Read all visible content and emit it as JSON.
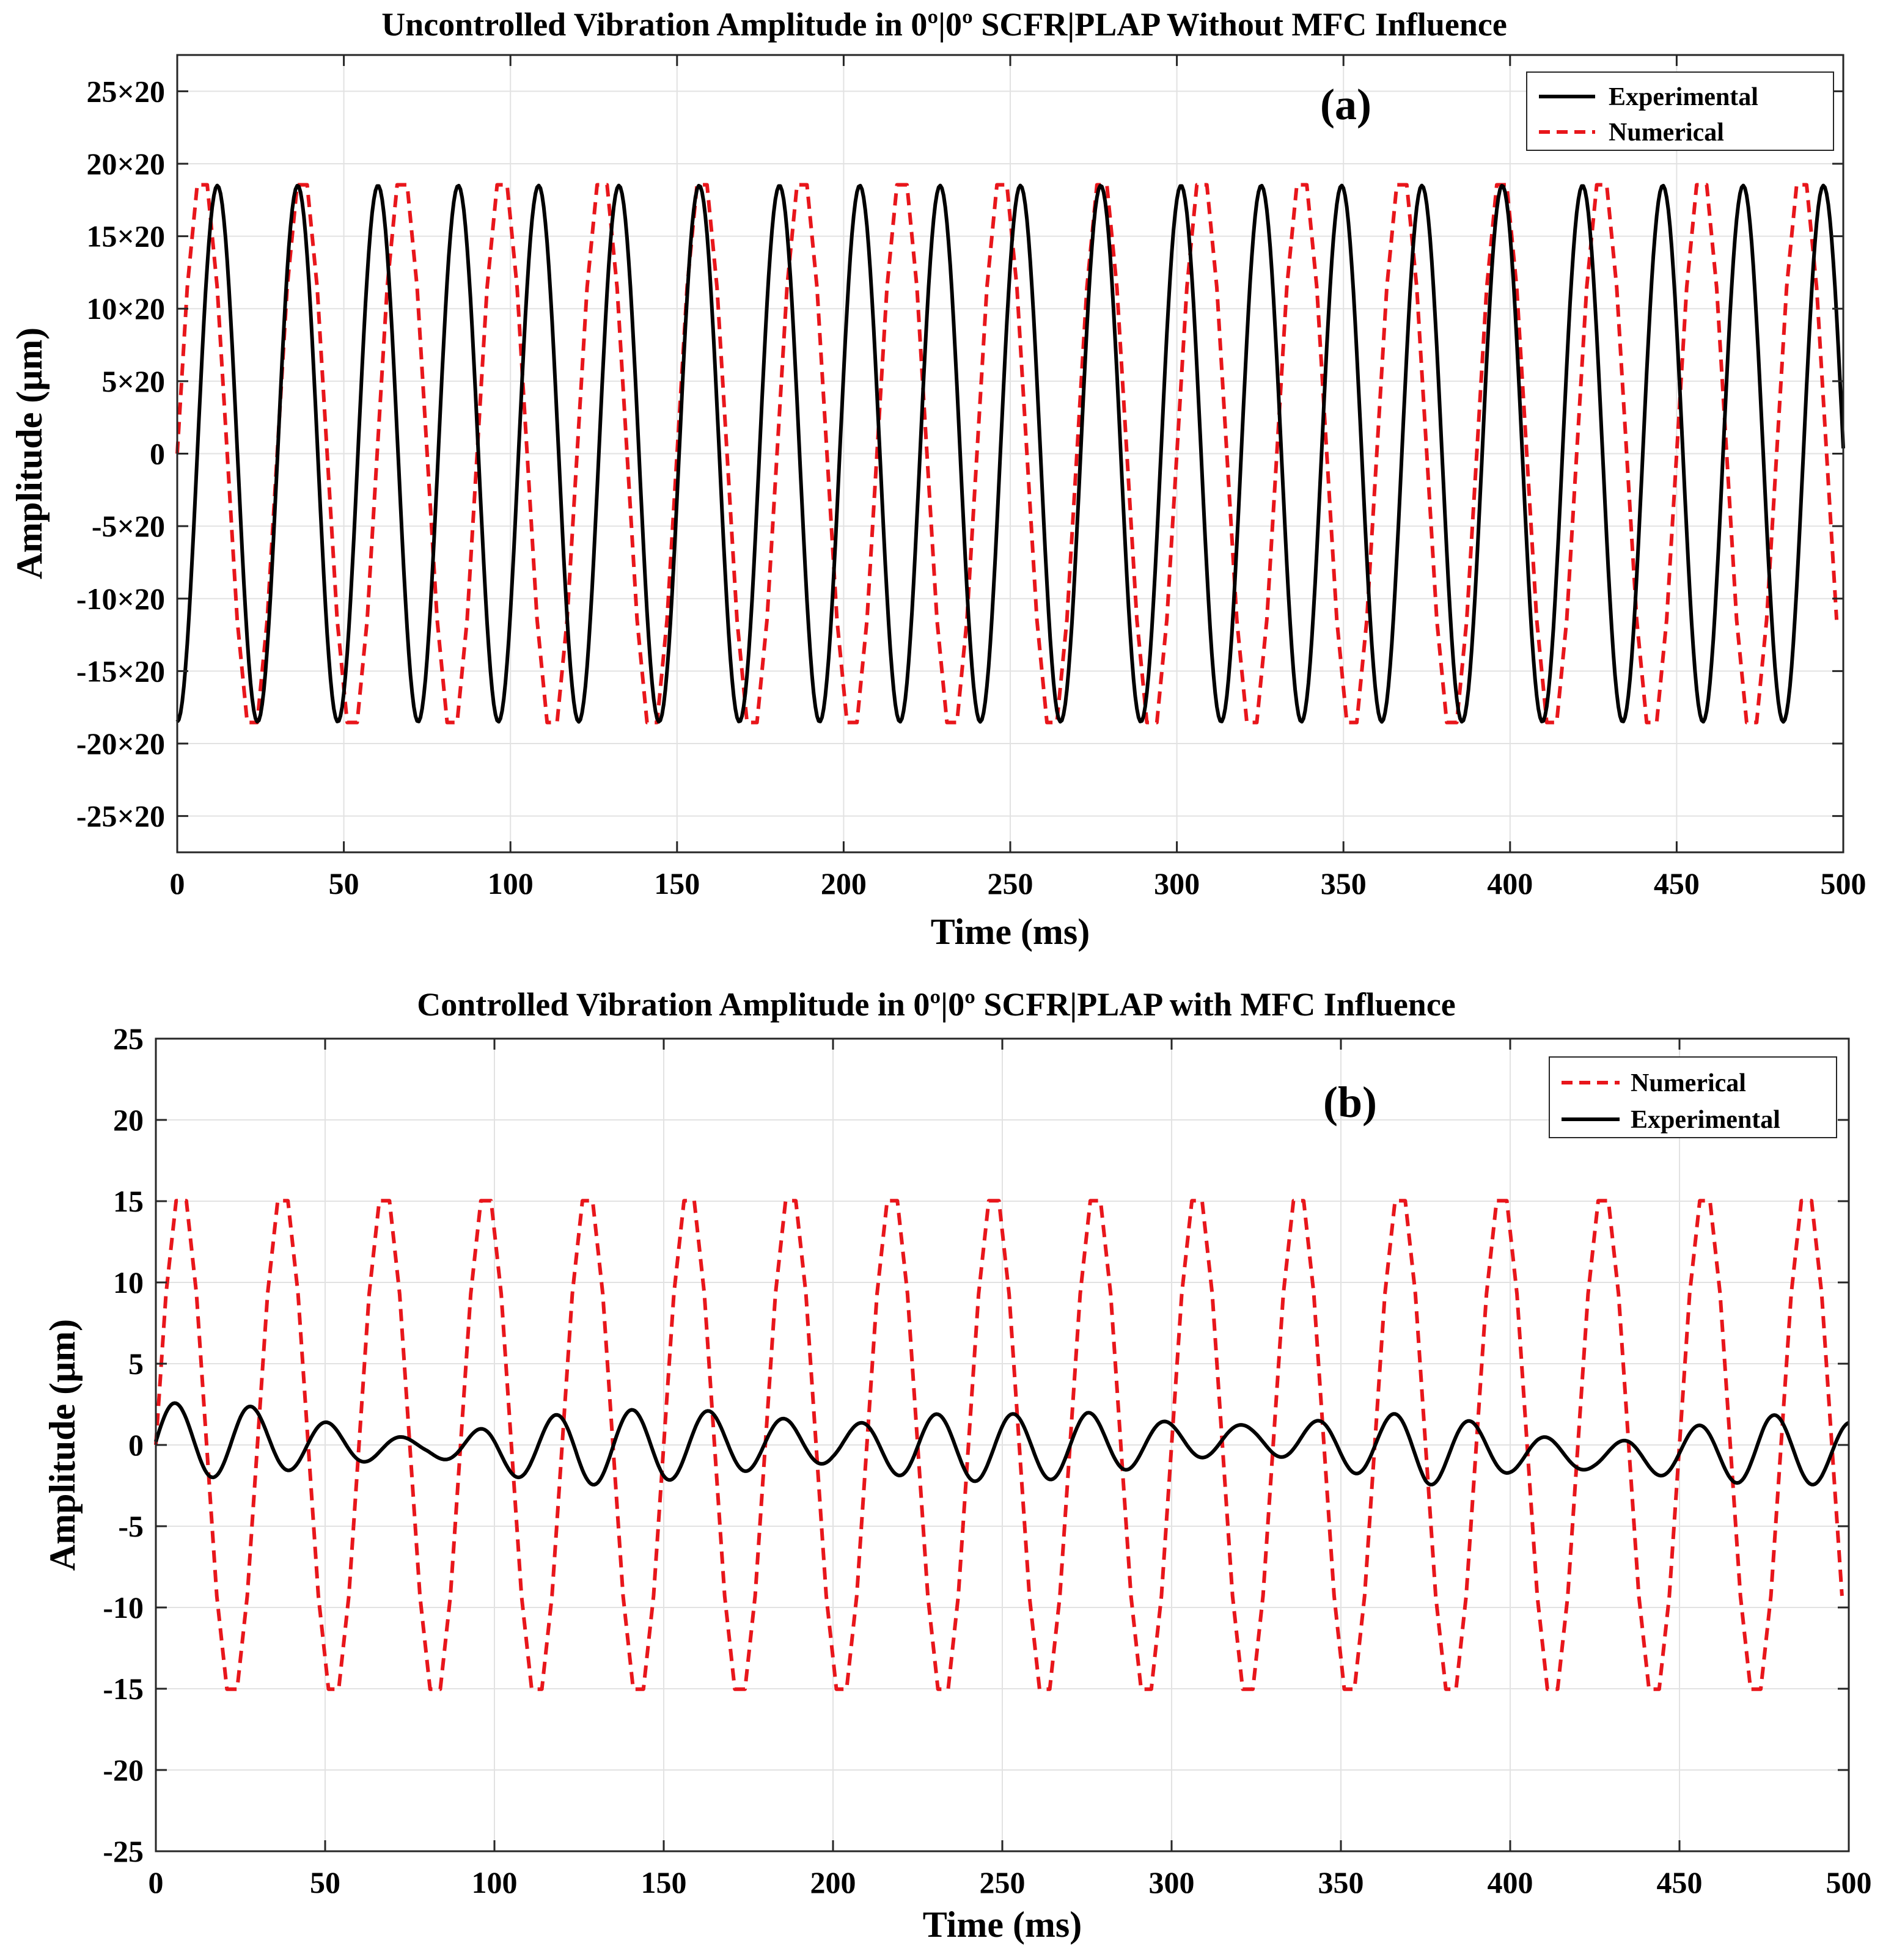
{
  "chart_data": [
    {
      "type": "line",
      "panel_label": "(a)",
      "title": "Uncontrolled Vibration Amplitude in 0º|0º SCFR|PLAP  Without MFC Influence",
      "xlabel": "Time (ms)",
      "ylabel": "Amplitude (μm)",
      "xlim": [
        0,
        500
      ],
      "ylim": [
        -27.5,
        27.5
      ],
      "grid": true,
      "legend_position": "top-right",
      "x_ticks": [
        0,
        50,
        100,
        150,
        200,
        250,
        300,
        350,
        400,
        450,
        500
      ],
      "x_tick_labels": [
        "0",
        "50",
        "100",
        "150",
        "200",
        "250",
        "300",
        "350",
        "400",
        "450",
        "500"
      ],
      "y_ticks": [
        25,
        20,
        15,
        10,
        5,
        0,
        -5,
        -10,
        -15,
        -20,
        -25
      ],
      "y_tick_labels": [
        "25×20",
        "20×20",
        "15×20",
        "10×20",
        "5×20",
        "0",
        "-5×20",
        "-10×20",
        "-15×20",
        "-20×20",
        "-25×20"
      ],
      "series": [
        {
          "name": "Experimental",
          "color": "#000000",
          "style": "solid",
          "waveform": {
            "kind": "sine",
            "amplitude": 18.5,
            "period_ms": 24.1,
            "start_phase_deg": 270,
            "step_ms": 0.5
          }
        },
        {
          "name": "Numerical",
          "color": "#e8161b",
          "style": "dashed",
          "waveform": {
            "kind": "sine",
            "amplitude": 19.5,
            "period_ms": 30.0,
            "start_phase_deg": 0,
            "step_ms": 3.0
          }
        }
      ]
    },
    {
      "type": "line",
      "panel_label": "(b)",
      "title": "Controlled Vibration Amplitude in 0º|0º SCFR|PLAP  with MFC Influence",
      "xlabel": "Time (ms)",
      "ylabel": "Amplitude (μm)",
      "xlim": [
        0,
        500
      ],
      "ylim": [
        -25,
        25
      ],
      "grid": true,
      "legend_position": "top-right",
      "x_ticks": [
        0,
        50,
        100,
        150,
        200,
        250,
        300,
        350,
        400,
        450,
        500
      ],
      "x_tick_labels": [
        "0",
        "50",
        "100",
        "150",
        "200",
        "250",
        "300",
        "350",
        "400",
        "450",
        "500"
      ],
      "y_ticks": [
        25,
        20,
        15,
        10,
        5,
        0,
        -5,
        -10,
        -15,
        -20,
        -25
      ],
      "y_tick_labels": [
        "25",
        "20",
        "15",
        "10",
        "5",
        "0",
        "-5",
        "-10",
        "-15",
        "-20",
        "-25"
      ],
      "series": [
        {
          "name": "Numerical",
          "color": "#e8161b",
          "style": "dashed",
          "waveform": {
            "kind": "sine",
            "amplitude": 15.8,
            "period_ms": 30.0,
            "start_phase_deg": 0,
            "step_ms": 3.0
          }
        },
        {
          "name": "Experimental",
          "color": "#000000",
          "style": "solid",
          "waveform": {
            "kind": "modulated-sine",
            "period_ms": 22.5,
            "step_ms": 0.5,
            "envelope_t_ms": [
              0,
              25,
              55,
              80,
              100,
              125,
              150,
              175,
              200,
              225,
              250,
              275,
              300,
              325,
              350,
              375,
              400,
              425,
              450,
              475,
              500
            ],
            "envelope_amp": [
              2.4,
              2.2,
              1.2,
              0.4,
              1.5,
              2.3,
              2.2,
              1.8,
              1.1,
              2.0,
              2.1,
              2.0,
              1.2,
              0.8,
              1.6,
              2.3,
              1.3,
              0.7,
              1.5,
              2.2,
              1.9
            ],
            "envelope_offset": [
              0.2,
              0.3,
              0.0,
              -0.2,
              -0.3,
              -0.2,
              0.0,
              0.2,
              0.0,
              -0.1,
              -0.2,
              0.0,
              0.2,
              0.4,
              0.0,
              -0.2,
              -0.4,
              -0.8,
              -0.5,
              -0.3,
              -0.5
            ]
          }
        }
      ]
    }
  ]
}
